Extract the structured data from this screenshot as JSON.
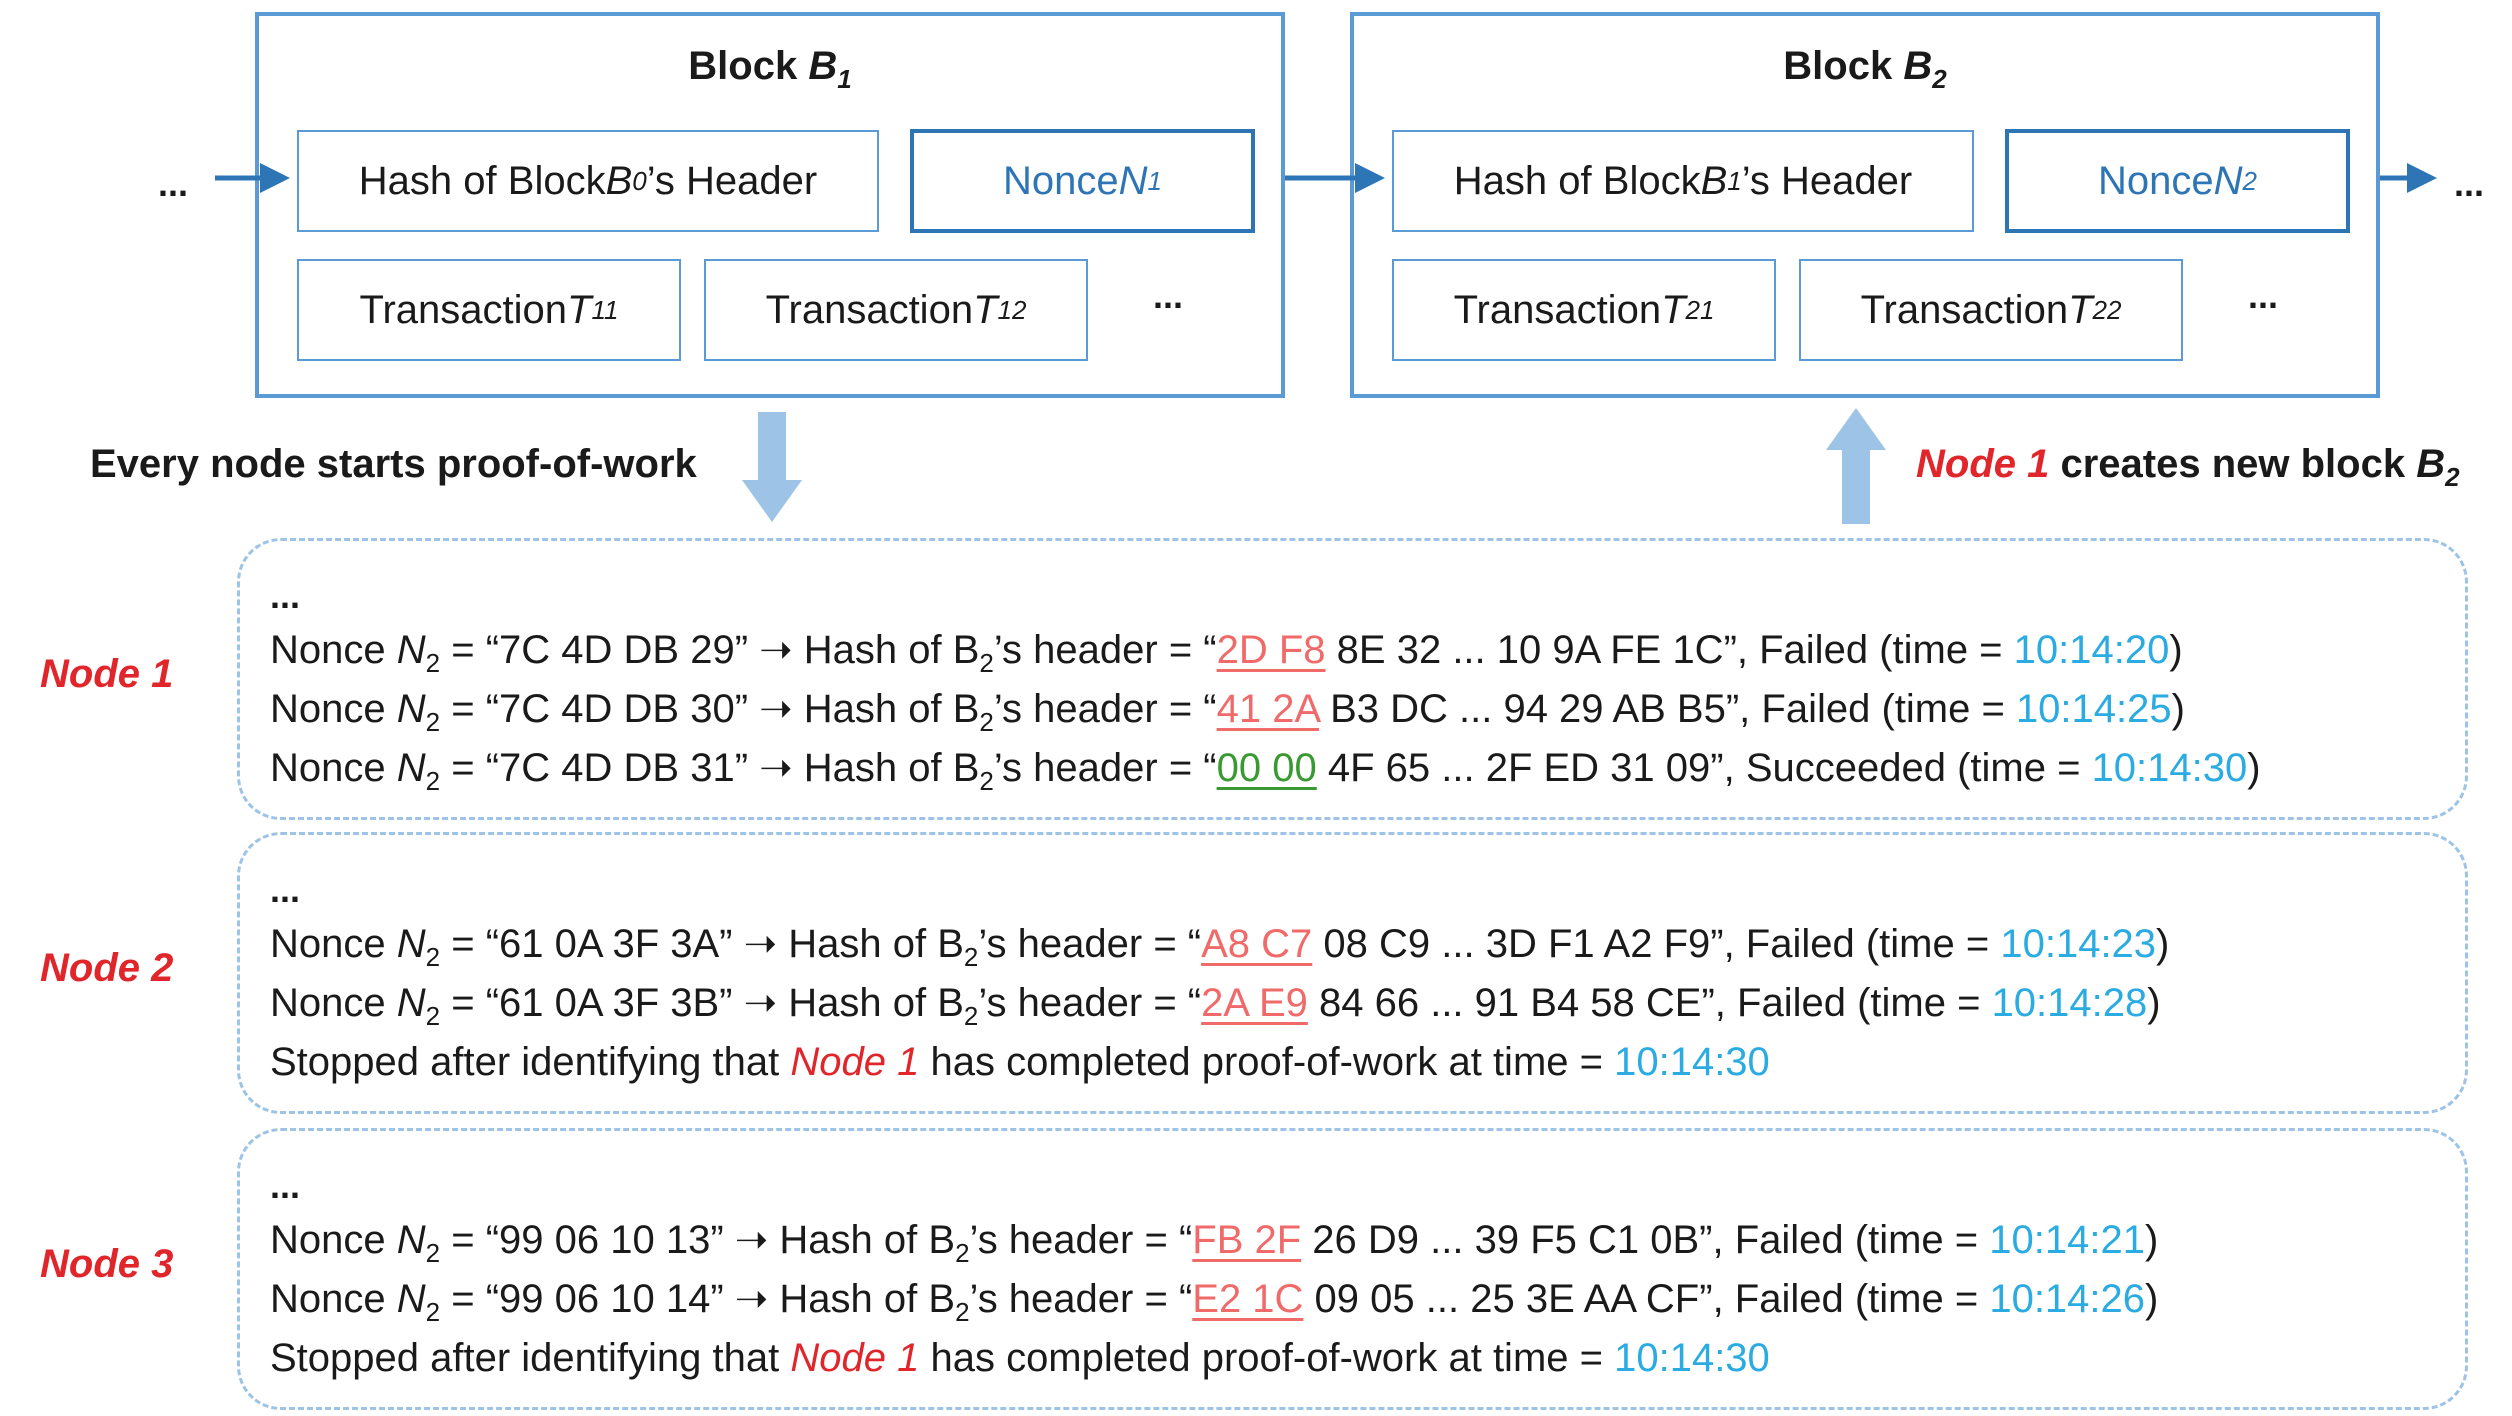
{
  "block1": {
    "title": "Block ",
    "title_sub": "B",
    "title_idx": "1",
    "hash_pre": "Hash of Block ",
    "hash_var": "B",
    "hash_sub": "0",
    "hash_post": "’s Header",
    "nonce_pre": "Nonce ",
    "nonce_var": "N",
    "nonce_sub": "1",
    "tx1_pre": "Transaction ",
    "tx1_var": "T",
    "tx1_sub": "11",
    "tx2_pre": "Transaction ",
    "tx2_var": "T",
    "tx2_sub": "12",
    "ellipsis": "..."
  },
  "block2": {
    "title": "Block ",
    "title_sub": "B",
    "title_idx": "2",
    "hash_pre": "Hash of Block ",
    "hash_var": "B",
    "hash_sub": "1",
    "hash_post": "’s Header",
    "nonce_pre": "Nonce ",
    "nonce_var": "N",
    "nonce_sub": "2",
    "tx1_pre": "Transaction ",
    "tx1_var": "T",
    "tx1_sub": "21",
    "tx2_pre": "Transaction ",
    "tx2_var": "T",
    "tx2_sub": "22",
    "ellipsis": "..."
  },
  "chain": {
    "left_ellipsis": "...",
    "right_ellipsis": "..."
  },
  "captions": {
    "left": "Every node starts proof-of-work",
    "right_node": "Node 1",
    "right_text": " creates new block ",
    "right_var": "B",
    "right_sub": "2"
  },
  "nodes": [
    {
      "label": "Node 1",
      "ellipsis": "...",
      "attempts": [
        {
          "nonce": "“7C 4D DB 29”",
          "hash_prefix": "2D F8",
          "hash_rest": " 8E 32 ... 10 9A FE 1C”",
          "result": ", Failed (time = ",
          "time": "10:14:20",
          "success": false
        },
        {
          "nonce": "“7C 4D DB 30”",
          "hash_prefix": "41 2A",
          "hash_rest": " B3 DC ... 94 29 AB B5”",
          "result": ", Failed (time = ",
          "time": "10:14:25",
          "success": false
        },
        {
          "nonce": "“7C 4D DB 31”",
          "hash_prefix": "00 00",
          "hash_rest": " 4F 65 ... 2F ED 31 09”",
          "result": ", Succeeded (time = ",
          "time": "10:14:30",
          "success": true
        }
      ],
      "stopped": null
    },
    {
      "label": "Node 2",
      "ellipsis": "...",
      "attempts": [
        {
          "nonce": "“61 0A 3F 3A”",
          "hash_prefix": "A8 C7",
          "hash_rest": " 08 C9 ... 3D F1 A2 F9”",
          "result": ", Failed (time = ",
          "time": "10:14:23",
          "success": false
        },
        {
          "nonce": "“61 0A 3F 3B”",
          "hash_prefix": "2A E9",
          "hash_rest": " 84 66 ... 91 B4 58 CE”",
          "result": ", Failed (time = ",
          "time": "10:14:28",
          "success": false
        }
      ],
      "stopped": {
        "pre": "Stopped after identifying that ",
        "node": "Node 1",
        "post": " has completed proof-of-work at time = ",
        "time": "10:14:30"
      }
    },
    {
      "label": "Node 3",
      "ellipsis": "...",
      "attempts": [
        {
          "nonce": "“99 06 10 13”",
          "hash_prefix": "FB 2F",
          "hash_rest": " 26 D9 ... 39 F5 C1 0B”",
          "result": ", Failed (time = ",
          "time": "10:14:21",
          "success": false
        },
        {
          "nonce": "“99 06 10 14”",
          "hash_prefix": "E2 1C",
          "hash_rest": " 09 05 ... 25 3E AA CF”",
          "result": ", Failed (time = ",
          "time": "10:14:26",
          "success": false
        }
      ],
      "stopped": {
        "pre": "Stopped after identifying that ",
        "node": "Node 1",
        "post": " has completed proof-of-work at time = ",
        "time": "10:14:30"
      }
    }
  ],
  "line_text": {
    "nonce_label": "Nonce ",
    "nonce_var": "N",
    "nonce_sub": "2",
    "equals": " = ",
    "arrow": " ➝ ",
    "hash_label_pre": "Hash of B",
    "hash_label_sub": "2",
    "hash_label_post": "’s header = “",
    "close": ")"
  },
  "colors": {
    "block_border": "#5b9bd5",
    "nonce": "#2e75b6",
    "node_label": "#e0262b",
    "failed_prefix": "#f06a6a",
    "success_prefix": "#3a9a32",
    "time": "#2aabe2",
    "panel_border": "#9dc3e6"
  }
}
